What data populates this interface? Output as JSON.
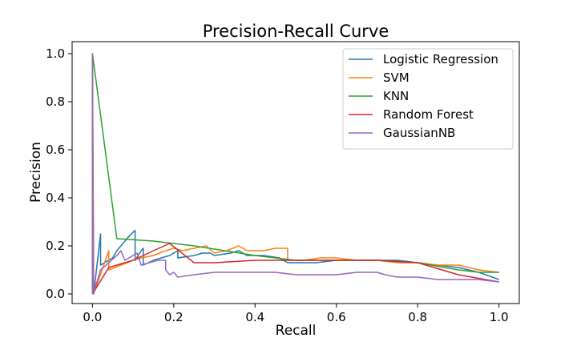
{
  "chart_data": {
    "type": "line",
    "title": "Precision-Recall Curve",
    "xlabel": "Recall",
    "ylabel": "Precision",
    "xlim": [
      -0.05,
      1.05
    ],
    "ylim": [
      -0.04,
      1.05
    ],
    "xticks": [
      0.0,
      0.2,
      0.4,
      0.6,
      0.8,
      1.0
    ],
    "yticks": [
      0.0,
      0.2,
      0.4,
      0.6,
      0.8,
      1.0
    ],
    "tick_labels_x": [
      "0.0",
      "0.2",
      "0.4",
      "0.6",
      "0.8",
      "1.0"
    ],
    "tick_labels_y": [
      "0.0",
      "0.2",
      "0.4",
      "0.6",
      "0.8",
      "1.0"
    ],
    "grid": false,
    "legend_position": "top-right",
    "series": [
      {
        "name": "Logistic Regression",
        "color": "#1f77b4",
        "points": [
          [
            0,
            0
          ],
          [
            0,
            1.0
          ],
          [
            0.003,
            0.0
          ],
          [
            0.02,
            0.25
          ],
          [
            0.02,
            0.12
          ],
          [
            0.05,
            0.15
          ],
          [
            0.06,
            0.18
          ],
          [
            0.08,
            0.22
          ],
          [
            0.09,
            0.24
          ],
          [
            0.105,
            0.265
          ],
          [
            0.105,
            0.14
          ],
          [
            0.12,
            0.18
          ],
          [
            0.125,
            0.19
          ],
          [
            0.125,
            0.12
          ],
          [
            0.15,
            0.14
          ],
          [
            0.17,
            0.15
          ],
          [
            0.19,
            0.16
          ],
          [
            0.2,
            0.17
          ],
          [
            0.21,
            0.18
          ],
          [
            0.21,
            0.15
          ],
          [
            0.25,
            0.16
          ],
          [
            0.27,
            0.17
          ],
          [
            0.29,
            0.17
          ],
          [
            0.3,
            0.16
          ],
          [
            0.34,
            0.17
          ],
          [
            0.36,
            0.18
          ],
          [
            0.38,
            0.16
          ],
          [
            0.42,
            0.16
          ],
          [
            0.46,
            0.15
          ],
          [
            0.48,
            0.13
          ],
          [
            0.52,
            0.13
          ],
          [
            0.55,
            0.13
          ],
          [
            0.6,
            0.14
          ],
          [
            0.65,
            0.14
          ],
          [
            0.7,
            0.14
          ],
          [
            0.75,
            0.14
          ],
          [
            0.8,
            0.13
          ],
          [
            0.85,
            0.12
          ],
          [
            0.9,
            0.11
          ],
          [
            0.95,
            0.09
          ],
          [
            1.0,
            0.06
          ]
        ]
      },
      {
        "name": "SVM",
        "color": "#ff7f0e",
        "points": [
          [
            0,
            0
          ],
          [
            0,
            1.0
          ],
          [
            0.003,
            0.0
          ],
          [
            0.04,
            0.18
          ],
          [
            0.04,
            0.1
          ],
          [
            0.07,
            0.12
          ],
          [
            0.1,
            0.14
          ],
          [
            0.12,
            0.15
          ],
          [
            0.15,
            0.16
          ],
          [
            0.18,
            0.18
          ],
          [
            0.2,
            0.19
          ],
          [
            0.22,
            0.18
          ],
          [
            0.25,
            0.19
          ],
          [
            0.28,
            0.2
          ],
          [
            0.3,
            0.17
          ],
          [
            0.33,
            0.18
          ],
          [
            0.36,
            0.2
          ],
          [
            0.38,
            0.18
          ],
          [
            0.42,
            0.18
          ],
          [
            0.45,
            0.19
          ],
          [
            0.48,
            0.19
          ],
          [
            0.48,
            0.14
          ],
          [
            0.52,
            0.14
          ],
          [
            0.56,
            0.15
          ],
          [
            0.6,
            0.15
          ],
          [
            0.65,
            0.14
          ],
          [
            0.7,
            0.14
          ],
          [
            0.75,
            0.13
          ],
          [
            0.8,
            0.13
          ],
          [
            0.85,
            0.12
          ],
          [
            0.9,
            0.12
          ],
          [
            0.95,
            0.1
          ],
          [
            1.0,
            0.09
          ]
        ]
      },
      {
        "name": "KNN",
        "color": "#2ca02c",
        "points": [
          [
            0,
            0
          ],
          [
            0,
            1.0
          ],
          [
            0.06,
            0.23
          ],
          [
            0.15,
            0.22
          ],
          [
            0.25,
            0.2
          ],
          [
            0.4,
            0.16
          ],
          [
            0.5,
            0.14
          ],
          [
            0.6,
            0.14
          ],
          [
            0.7,
            0.14
          ],
          [
            0.8,
            0.13
          ],
          [
            0.9,
            0.1
          ],
          [
            0.95,
            0.09
          ],
          [
            1.0,
            0.09
          ]
        ]
      },
      {
        "name": "Random Forest",
        "color": "#d62728",
        "points": [
          [
            0,
            0
          ],
          [
            0.04,
            0.11
          ],
          [
            0.1,
            0.14
          ],
          [
            0.15,
            0.18
          ],
          [
            0.19,
            0.21
          ],
          [
            0.25,
            0.13
          ],
          [
            0.3,
            0.13
          ],
          [
            0.4,
            0.14
          ],
          [
            0.5,
            0.14
          ],
          [
            0.6,
            0.14
          ],
          [
            0.7,
            0.14
          ],
          [
            0.8,
            0.13
          ],
          [
            0.9,
            0.08
          ],
          [
            1.0,
            0.05
          ]
        ]
      },
      {
        "name": "GaussianNB",
        "color": "#9467bd",
        "points": [
          [
            0,
            0
          ],
          [
            0,
            1.0
          ],
          [
            0.002,
            0.0
          ],
          [
            0.02,
            0.1
          ],
          [
            0.04,
            0.13
          ],
          [
            0.06,
            0.16
          ],
          [
            0.07,
            0.18
          ],
          [
            0.08,
            0.14
          ],
          [
            0.09,
            0.15
          ],
          [
            0.1,
            0.16
          ],
          [
            0.11,
            0.17
          ],
          [
            0.12,
            0.12
          ],
          [
            0.14,
            0.13
          ],
          [
            0.16,
            0.14
          ],
          [
            0.18,
            0.14
          ],
          [
            0.18,
            0.1
          ],
          [
            0.19,
            0.08
          ],
          [
            0.2,
            0.09
          ],
          [
            0.21,
            0.07
          ],
          [
            0.25,
            0.08
          ],
          [
            0.3,
            0.09
          ],
          [
            0.35,
            0.09
          ],
          [
            0.4,
            0.09
          ],
          [
            0.45,
            0.09
          ],
          [
            0.5,
            0.08
          ],
          [
            0.55,
            0.08
          ],
          [
            0.6,
            0.08
          ],
          [
            0.65,
            0.09
          ],
          [
            0.7,
            0.09
          ],
          [
            0.72,
            0.08
          ],
          [
            0.75,
            0.07
          ],
          [
            0.8,
            0.07
          ],
          [
            0.85,
            0.06
          ],
          [
            0.9,
            0.06
          ],
          [
            0.95,
            0.06
          ],
          [
            1.0,
            0.05
          ]
        ]
      }
    ]
  }
}
